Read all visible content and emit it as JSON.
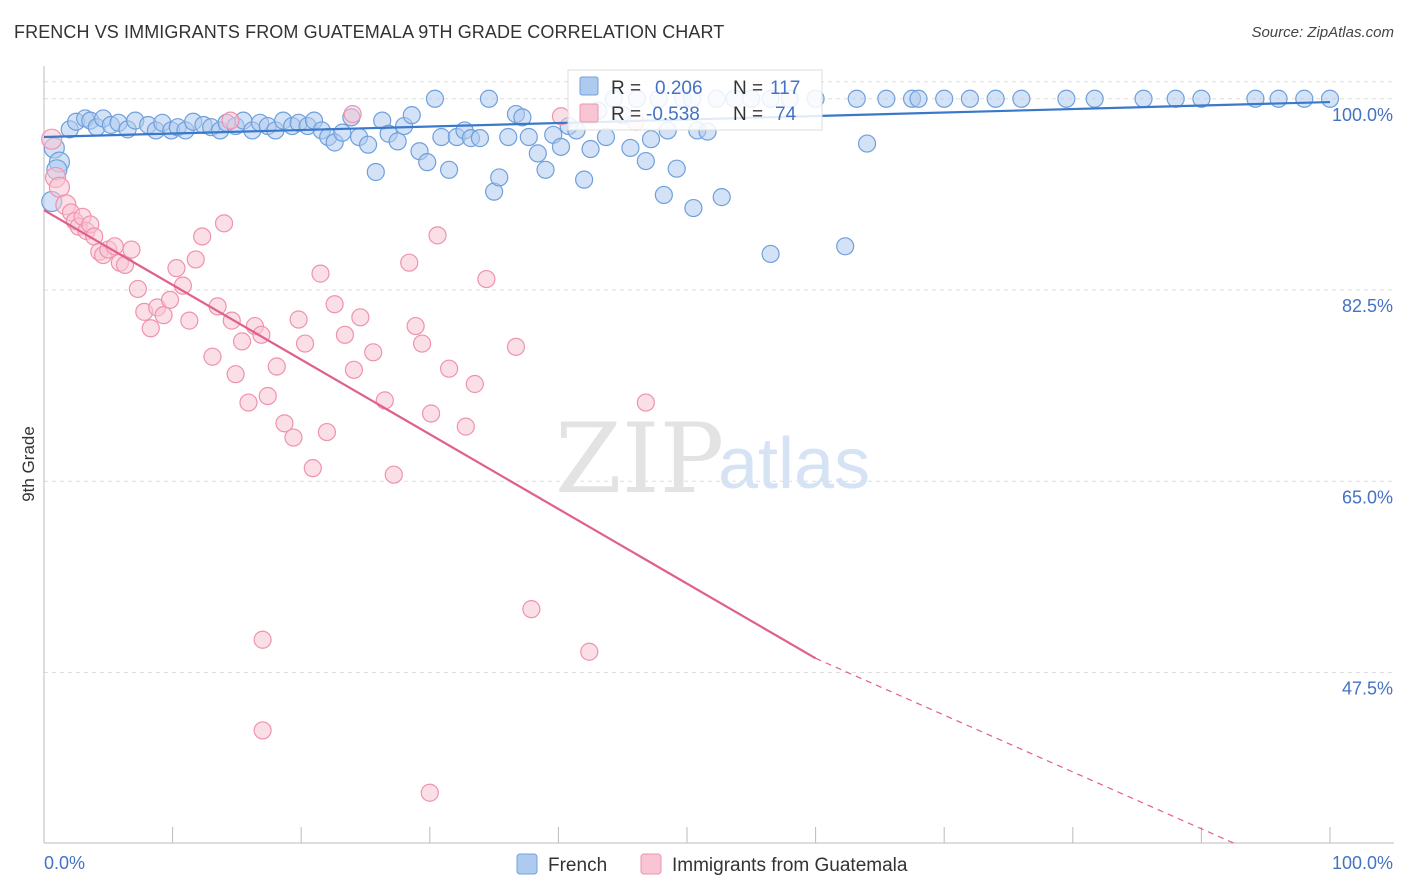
{
  "title": "FRENCH VS IMMIGRANTS FROM GUATEMALA 9TH GRADE CORRELATION CHART",
  "source": "Source: ZipAtlas.com",
  "watermark": {
    "zip": "ZIP",
    "atlas": "atlas"
  },
  "colors": {
    "french": "#6fa0dc",
    "french_fill": "#aecbef",
    "french_line": "#3a78c9",
    "guatemala": "#ef92ad",
    "guatemala_fill": "#f7c5d4",
    "guatemala_line": "#e0608a",
    "grid": "#dddddd",
    "tick_label": "#4472c4"
  },
  "stats": {
    "r_label": "R =",
    "n_label": "N =",
    "french": {
      "r": "0.206",
      "n": "117"
    },
    "guatemala": {
      "r": "-0.538",
      "n": "74"
    }
  },
  "chart_data": {
    "type": "scatter",
    "title": "FRENCH VS IMMIGRANTS FROM GUATEMALA 9TH GRADE CORRELATION CHART",
    "xlabel": "",
    "ylabel": "9th Grade",
    "xlim": [
      0,
      100
    ],
    "ylim": [
      31.9,
      101.9
    ],
    "x_tick_labels": [
      "0.0%",
      "100.0%"
    ],
    "y_tick_labels": [
      "100.0%",
      "82.5%",
      "65.0%",
      "47.5%"
    ],
    "y_ticks": [
      100.0,
      82.5,
      65.0,
      47.5
    ],
    "grid": true,
    "legend_placement": "bottom",
    "series": [
      {
        "name": "French",
        "trend": {
          "x": [
            0,
            100
          ],
          "y": [
            96.5,
            99.7
          ]
        },
        "points": [
          [
            0.8,
            95.5
          ],
          [
            1.2,
            94.2
          ],
          [
            0.6,
            90.6
          ],
          [
            1.0,
            93.5
          ],
          [
            2.0,
            97.2
          ],
          [
            2.5,
            97.9
          ],
          [
            3.2,
            98.2
          ],
          [
            3.6,
            98.0
          ],
          [
            4.1,
            97.4
          ],
          [
            4.6,
            98.2
          ],
          [
            5.2,
            97.6
          ],
          [
            5.8,
            97.8
          ],
          [
            6.5,
            97.2
          ],
          [
            7.1,
            98.0
          ],
          [
            8.1,
            97.6
          ],
          [
            8.7,
            97.1
          ],
          [
            9.2,
            97.8
          ],
          [
            9.9,
            97.1
          ],
          [
            10.4,
            97.4
          ],
          [
            11.0,
            97.1
          ],
          [
            11.6,
            97.9
          ],
          [
            12.4,
            97.6
          ],
          [
            13.0,
            97.4
          ],
          [
            13.7,
            97.1
          ],
          [
            14.2,
            97.8
          ],
          [
            14.9,
            97.5
          ],
          [
            15.5,
            98.0
          ],
          [
            16.2,
            97.1
          ],
          [
            16.8,
            97.8
          ],
          [
            17.4,
            97.5
          ],
          [
            18.0,
            97.1
          ],
          [
            18.6,
            98.0
          ],
          [
            19.3,
            97.5
          ],
          [
            19.8,
            97.8
          ],
          [
            20.5,
            97.5
          ],
          [
            21.0,
            98.0
          ],
          [
            21.6,
            97.1
          ],
          [
            22.1,
            96.5
          ],
          [
            22.6,
            96.0
          ],
          [
            23.2,
            96.9
          ],
          [
            23.9,
            98.3
          ],
          [
            24.5,
            96.5
          ],
          [
            25.2,
            95.8
          ],
          [
            25.8,
            93.3
          ],
          [
            26.3,
            98.0
          ],
          [
            26.8,
            96.8
          ],
          [
            27.5,
            96.1
          ],
          [
            28.0,
            97.5
          ],
          [
            28.6,
            98.5
          ],
          [
            29.2,
            95.2
          ],
          [
            29.8,
            94.2
          ],
          [
            30.4,
            100.0
          ],
          [
            30.9,
            96.5
          ],
          [
            31.5,
            93.5
          ],
          [
            32.1,
            96.5
          ],
          [
            32.7,
            97.1
          ],
          [
            33.2,
            96.4
          ],
          [
            33.9,
            96.4
          ],
          [
            34.6,
            100.0
          ],
          [
            35.0,
            91.5
          ],
          [
            35.4,
            92.8
          ],
          [
            36.1,
            96.5
          ],
          [
            36.7,
            98.6
          ],
          [
            37.2,
            98.3
          ],
          [
            37.7,
            96.5
          ],
          [
            38.4,
            95.0
          ],
          [
            39.0,
            93.5
          ],
          [
            39.6,
            96.7
          ],
          [
            40.2,
            95.6
          ],
          [
            40.8,
            97.5
          ],
          [
            41.4,
            97.1
          ],
          [
            42.0,
            92.6
          ],
          [
            42.5,
            95.4
          ],
          [
            43.1,
            98.9
          ],
          [
            43.7,
            96.5
          ],
          [
            44.3,
            100.0
          ],
          [
            45.0,
            98.5
          ],
          [
            45.6,
            95.5
          ],
          [
            46.1,
            100.0
          ],
          [
            46.8,
            94.3
          ],
          [
            47.2,
            96.3
          ],
          [
            47.8,
            100.0
          ],
          [
            48.5,
            97.1
          ],
          [
            49.2,
            93.6
          ],
          [
            49.7,
            100.0
          ],
          [
            50.4,
            100.0
          ],
          [
            50.8,
            97.1
          ],
          [
            51.6,
            97.0
          ],
          [
            52.3,
            100.0
          ],
          [
            52.7,
            91.0
          ],
          [
            53.7,
            100.0
          ],
          [
            55.0,
            100.0
          ],
          [
            56.5,
            100.0
          ],
          [
            58.0,
            100.0
          ],
          [
            60.0,
            100.0
          ],
          [
            62.3,
            86.5
          ],
          [
            63.2,
            100.0
          ],
          [
            64.0,
            95.9
          ],
          [
            65.5,
            100.0
          ],
          [
            67.5,
            100.0
          ],
          [
            68.0,
            100.0
          ],
          [
            70.0,
            100.0
          ],
          [
            72.0,
            100.0
          ],
          [
            74.0,
            100.0
          ],
          [
            76.0,
            100.0
          ],
          [
            79.5,
            100.0
          ],
          [
            81.7,
            100.0
          ],
          [
            85.5,
            100.0
          ],
          [
            88.0,
            100.0
          ],
          [
            90.0,
            100.0
          ],
          [
            94.2,
            100.0
          ],
          [
            96.0,
            100.0
          ],
          [
            98.0,
            100.0
          ],
          [
            100.0,
            100.0
          ],
          [
            56.5,
            85.8
          ],
          [
            50.5,
            90.0
          ],
          [
            48.2,
            91.2
          ]
        ]
      },
      {
        "name": "Immigrants from Guatemala",
        "trend": {
          "x": [
            0,
            60
          ],
          "y": [
            89.8,
            48.8
          ]
        },
        "trend_dashed": {
          "x": [
            60,
            92.5
          ],
          "y": [
            48.8,
            31.9
          ]
        },
        "points": [
          [
            0.6,
            96.3
          ],
          [
            0.9,
            92.8
          ],
          [
            1.2,
            91.9
          ],
          [
            1.7,
            90.3
          ],
          [
            2.1,
            89.6
          ],
          [
            2.4,
            88.8
          ],
          [
            2.7,
            88.3
          ],
          [
            3.0,
            89.2
          ],
          [
            3.3,
            87.9
          ],
          [
            3.6,
            88.5
          ],
          [
            3.9,
            87.4
          ],
          [
            4.3,
            86.0
          ],
          [
            4.6,
            85.7
          ],
          [
            5.0,
            86.2
          ],
          [
            5.5,
            86.5
          ],
          [
            5.9,
            85.0
          ],
          [
            6.3,
            84.8
          ],
          [
            6.8,
            86.2
          ],
          [
            7.3,
            82.6
          ],
          [
            7.8,
            80.5
          ],
          [
            8.3,
            79.0
          ],
          [
            8.8,
            80.9
          ],
          [
            9.3,
            80.2
          ],
          [
            9.8,
            81.6
          ],
          [
            10.3,
            84.5
          ],
          [
            10.8,
            82.9
          ],
          [
            11.3,
            79.7
          ],
          [
            11.8,
            85.3
          ],
          [
            12.3,
            87.4
          ],
          [
            13.1,
            76.4
          ],
          [
            13.5,
            81.0
          ],
          [
            14.0,
            88.6
          ],
          [
            14.6,
            79.7
          ],
          [
            14.9,
            74.8
          ],
          [
            15.4,
            77.8
          ],
          [
            15.9,
            72.2
          ],
          [
            16.4,
            79.2
          ],
          [
            16.9,
            78.4
          ],
          [
            17.4,
            72.8
          ],
          [
            18.1,
            75.5
          ],
          [
            18.7,
            70.3
          ],
          [
            19.4,
            69.0
          ],
          [
            19.8,
            79.8
          ],
          [
            20.3,
            77.6
          ],
          [
            20.9,
            66.2
          ],
          [
            21.5,
            84.0
          ],
          [
            22.0,
            69.5
          ],
          [
            22.6,
            81.2
          ],
          [
            23.4,
            78.4
          ],
          [
            24.1,
            75.2
          ],
          [
            24.6,
            80.0
          ],
          [
            25.6,
            76.8
          ],
          [
            26.5,
            72.4
          ],
          [
            27.2,
            65.6
          ],
          [
            28.4,
            85.0
          ],
          [
            28.9,
            79.2
          ],
          [
            29.4,
            77.6
          ],
          [
            30.1,
            71.2
          ],
          [
            30.6,
            87.5
          ],
          [
            31.5,
            75.3
          ],
          [
            32.8,
            70.0
          ],
          [
            33.5,
            73.9
          ],
          [
            34.4,
            83.5
          ],
          [
            36.7,
            77.3
          ],
          [
            37.9,
            53.3
          ],
          [
            40.2,
            98.4
          ],
          [
            42.4,
            49.4
          ],
          [
            46.0,
            97.9
          ],
          [
            46.8,
            72.2
          ],
          [
            17.0,
            50.5
          ],
          [
            17.0,
            42.2
          ],
          [
            30.0,
            36.5
          ],
          [
            14.5,
            98.0
          ],
          [
            24.0,
            98.6
          ]
        ]
      }
    ]
  },
  "legend": {
    "items": [
      "French",
      "Immigrants from Guatemala"
    ]
  }
}
